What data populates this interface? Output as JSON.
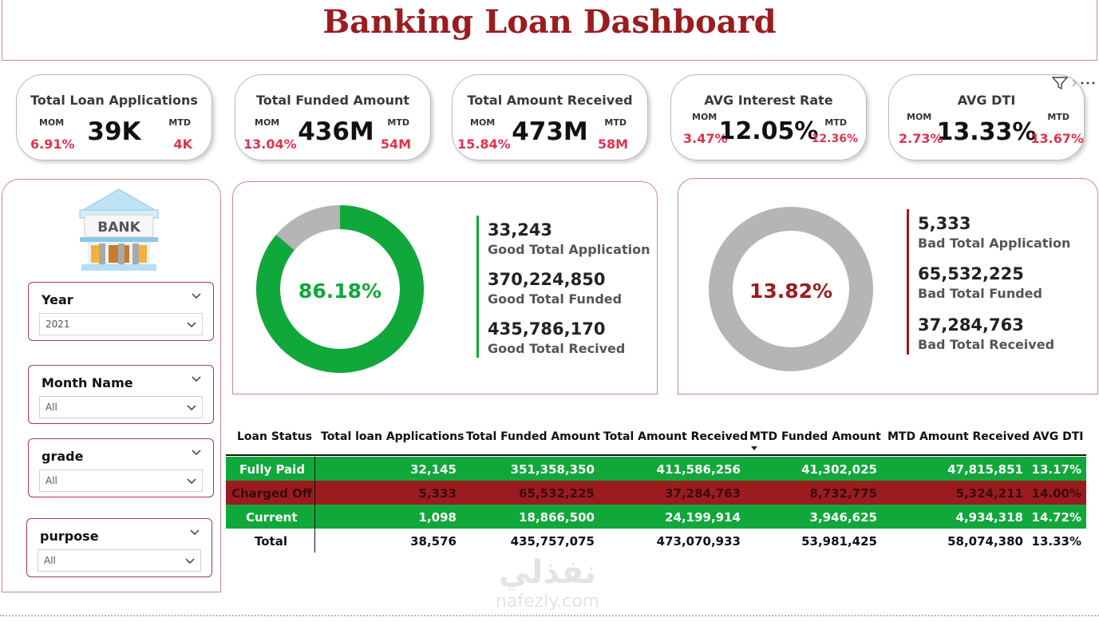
{
  "title": "Banking Loan Dashboard",
  "colors": {
    "accent": "#9b1c1f",
    "good": "#10a83b",
    "neutral": "#b5b5b5",
    "mom_red": "#e0334e"
  },
  "kpis": [
    {
      "title": "Total Loan Applications",
      "value": "39K",
      "mom_label": "MOM",
      "mom_value": "6.91%",
      "mtd_label": "MTD",
      "mtd_value": "4K"
    },
    {
      "title": "Total Funded Amount",
      "value": "436M",
      "mom_label": "MOM",
      "mom_value": "13.04%",
      "mtd_label": "MTD",
      "mtd_value": "54M"
    },
    {
      "title": "Total Amount Received",
      "value": "473M",
      "mom_label": "MOM",
      "mom_value": "15.84%",
      "mtd_label": "MTD",
      "mtd_value": "58M"
    },
    {
      "title": "AVG Interest Rate",
      "value": "12.05%",
      "mom_label": "MOM",
      "mom_value": "3.47%",
      "mtd_label": "MTD",
      "mtd_value": "12.36%"
    },
    {
      "title": "AVG DTI",
      "value": "13.33%",
      "mom_label": "MOM",
      "mom_value": "2.73%",
      "mtd_label": "MTD",
      "mtd_value": "13.67%"
    }
  ],
  "visual_header_icons": [
    "filter-icon",
    "more-options-icon"
  ],
  "bank_image": {
    "icon": "bank-building-icon",
    "sign": "BANK"
  },
  "filters": [
    {
      "label": "Year",
      "value": "2021"
    },
    {
      "label": "Month Name",
      "value": "All"
    },
    {
      "label": "grade",
      "value": "All"
    },
    {
      "label": "purpose",
      "value": "All"
    }
  ],
  "good_loans": {
    "percent_label": "86.18%",
    "percent": 86.18,
    "stats": [
      {
        "value": "33,243",
        "label": "Good Total Application"
      },
      {
        "value": "370,224,850",
        "label": "Good Total Funded"
      },
      {
        "value": "435,786,170",
        "label": "Good Total Recived"
      }
    ]
  },
  "bad_loans": {
    "percent_label": "13.82%",
    "percent": 13.82,
    "stats": [
      {
        "value": "5,333",
        "label": "Bad Total Application"
      },
      {
        "value": "65,532,225",
        "label": "Bad Total Funded"
      },
      {
        "value": "37,284,763",
        "label": "Bad Total Received"
      }
    ]
  },
  "table": {
    "columns": [
      "Loan Status",
      "Total loan Applications",
      "Total Funded Amount",
      "Total Amount Received",
      "MTD Funded Amount",
      "MTD Amount Received",
      "AVG DTI"
    ],
    "sorted_column": "MTD Funded Amount",
    "rows": [
      {
        "status": "Fully Paid",
        "cells": [
          "32,145",
          "351,358,350",
          "411,586,256",
          "41,302,025",
          "47,815,851",
          "13.17%"
        ]
      },
      {
        "status": "Charged Off",
        "cells": [
          "5,333",
          "65,532,225",
          "37,284,763",
          "8,732,775",
          "5,324,211",
          "14.00%"
        ]
      },
      {
        "status": "Current",
        "cells": [
          "1,098",
          "18,866,500",
          "24,199,914",
          "3,946,625",
          "4,934,318",
          "14.72%"
        ]
      }
    ],
    "total": {
      "status": "Total",
      "cells": [
        "38,576",
        "435,757,075",
        "473,070,933",
        "53,981,425",
        "58,074,380",
        "13.33%"
      ]
    }
  },
  "watermark": {
    "arabic": "نفذلي",
    "latin": "nafezly.com"
  }
}
